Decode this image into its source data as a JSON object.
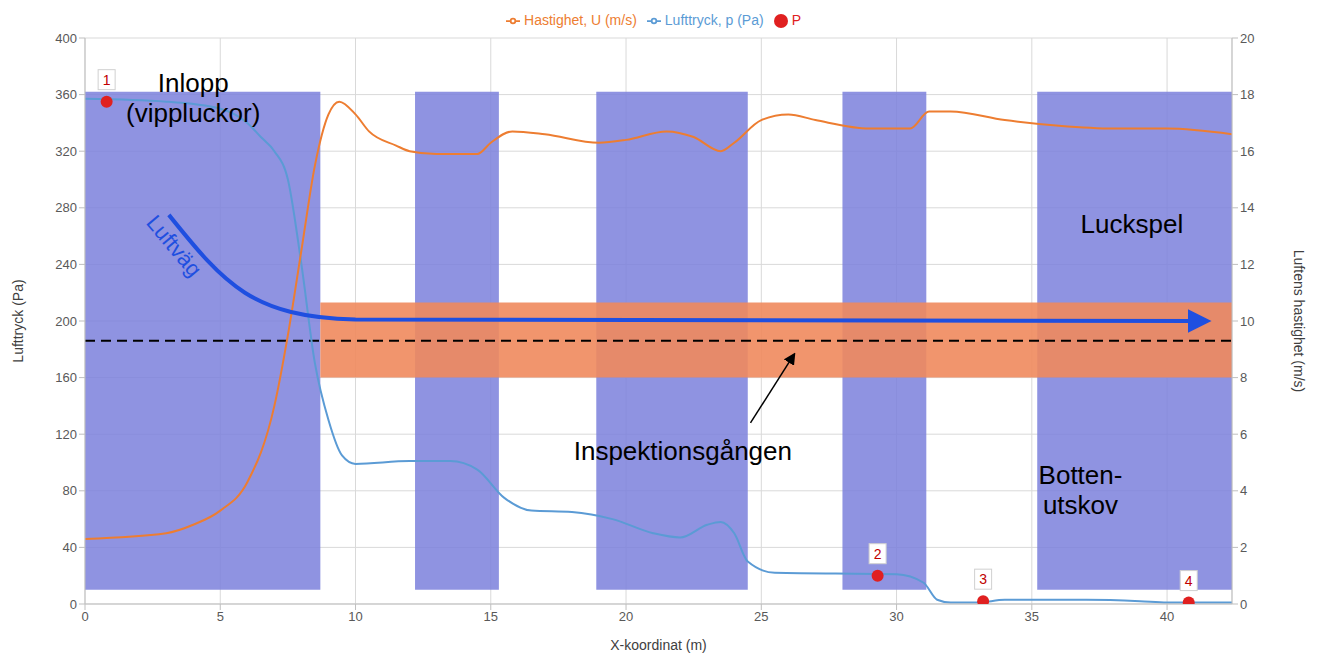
{
  "chart_data": {
    "type": "line",
    "xlabel": "X-koordinat (m)",
    "ylabel": "Lufttryck (Pa)",
    "y2label": "Luftens hastighet (m/s)",
    "xlim": [
      0,
      42.4
    ],
    "xticks": [
      0,
      5,
      10,
      15,
      20,
      25,
      30,
      35,
      40
    ],
    "ylim": [
      0,
      400
    ],
    "yticks": [
      0,
      40,
      80,
      120,
      160,
      200,
      240,
      280,
      320,
      360,
      400
    ],
    "y2lim": [
      0,
      20
    ],
    "y2ticks": [
      0,
      2,
      4,
      6,
      8,
      10,
      12,
      14,
      16,
      18,
      20
    ],
    "grid": true,
    "legend": "top",
    "series": [
      {
        "name": "Lufttryck, p (Pa)",
        "color": "#5b9bd5",
        "x": [
          0,
          3,
          5,
          6,
          6.5,
          7,
          7.5,
          8,
          8.5,
          9,
          9.5,
          10,
          12,
          13.5,
          14.5,
          15.5,
          16.5,
          18,
          19.5,
          21,
          22,
          23,
          23.5,
          24,
          24.5,
          25.5,
          30,
          31,
          31.5,
          32,
          33,
          34,
          37,
          39,
          40,
          42.4
        ],
        "values": [
          357,
          355,
          350,
          340,
          330,
          320,
          300,
          240,
          170,
          130,
          105,
          99,
          101,
          101,
          95,
          75,
          66,
          65,
          60,
          50,
          47,
          56,
          58,
          50,
          30,
          22,
          21,
          15,
          3,
          1,
          1,
          3,
          3,
          2,
          1,
          1
        ]
      },
      {
        "name": "P",
        "type": "scatter",
        "color": "#e02020",
        "marker": "circle",
        "x": [
          0.8,
          29.3,
          33.2,
          40.8
        ],
        "values": [
          355,
          20,
          2,
          1
        ],
        "point_labels": [
          "1",
          "2",
          "3",
          "4"
        ]
      },
      {
        "name": "Hastighet, U (m/s)",
        "color": "#ed7d31",
        "axis": "y2",
        "x": [
          0,
          3,
          4,
          5,
          6,
          7,
          7.5,
          8,
          8.5,
          9,
          9.4,
          10,
          10.5,
          11.5,
          12,
          13,
          14.5,
          15,
          15.8,
          17,
          19,
          20,
          21.5,
          22.5,
          23.5,
          24,
          25,
          26,
          27,
          29,
          30.5,
          31.2,
          32,
          34,
          36,
          38,
          40,
          42.4
        ],
        "values": [
          2.3,
          2.5,
          2.8,
          3.3,
          4.3,
          7,
          9.5,
          12.5,
          15.5,
          17.3,
          17.75,
          17.3,
          16.7,
          16.2,
          16,
          15.9,
          15.9,
          16.3,
          16.7,
          16.6,
          16.3,
          16.4,
          16.7,
          16.5,
          16,
          16.3,
          17.1,
          17.3,
          17.1,
          16.8,
          16.8,
          17.4,
          17.4,
          17.1,
          16.9,
          16.8,
          16.8,
          16.6
        ]
      }
    ],
    "regions": [
      {
        "x": [
          0,
          8.7
        ],
        "y": [
          10,
          362
        ],
        "color": "#7b80dc"
      },
      {
        "x": [
          12.2,
          15.3
        ],
        "y": [
          10,
          362
        ],
        "color": "#7b80dc"
      },
      {
        "x": [
          18.9,
          24.5
        ],
        "y": [
          10,
          362
        ],
        "color": "#7b80dc"
      },
      {
        "x": [
          28,
          31.1
        ],
        "y": [
          10,
          362
        ],
        "color": "#7b80dc"
      },
      {
        "x": [
          35.2,
          42.4
        ],
        "y": [
          10,
          362
        ],
        "color": "#7b80dc"
      }
    ],
    "band": {
      "label": "Inspektionsgången",
      "x": [
        8.7,
        42.4
      ],
      "y": [
        160,
        213
      ],
      "color": "#f08a5d"
    },
    "reference_line": {
      "y": 186,
      "line_style": "dashed",
      "color": "#000000"
    },
    "annotations": [
      {
        "text": "Inlopp (vippluckor)"
      },
      {
        "text": "Luftväg",
        "color": "#1f4fe0"
      },
      {
        "text": "Luckspel"
      },
      {
        "text": "Botten-utskov"
      }
    ]
  }
}
